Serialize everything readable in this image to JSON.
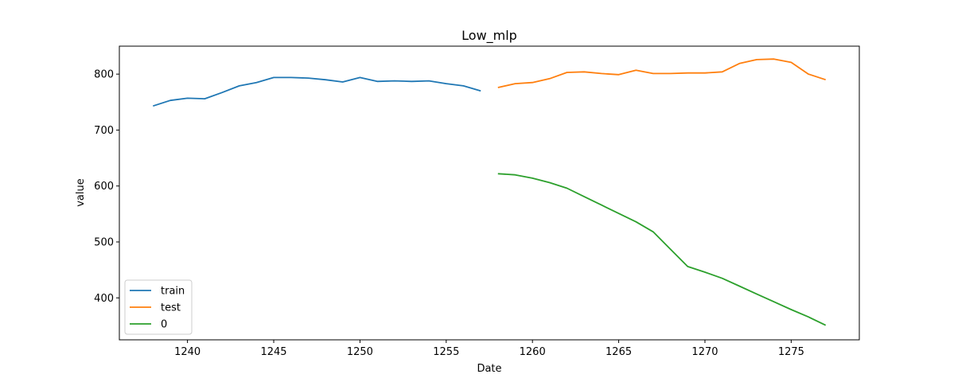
{
  "chart_data": {
    "type": "line",
    "title": "Low_mlp",
    "xlabel": "Date",
    "ylabel": "value",
    "xlim": [
      1236.05,
      1278.95
    ],
    "ylim": [
      325,
      850
    ],
    "xticks": [
      1240,
      1245,
      1250,
      1255,
      1260,
      1265,
      1270,
      1275
    ],
    "yticks": [
      400,
      500,
      600,
      700,
      800
    ],
    "grid": false,
    "legend_position": "lower-left",
    "series": [
      {
        "name": "train",
        "color": "#1f77b4",
        "x": [
          1238,
          1239,
          1240,
          1241,
          1242,
          1243,
          1244,
          1245,
          1246,
          1247,
          1248,
          1249,
          1250,
          1251,
          1252,
          1253,
          1254,
          1255,
          1256,
          1257
        ],
        "y": [
          743,
          753,
          757,
          756,
          767,
          779,
          785,
          794,
          794,
          793,
          790,
          786,
          794,
          787,
          788,
          787,
          788,
          783,
          779,
          770
        ]
      },
      {
        "name": "test",
        "color": "#ff7f0e",
        "x": [
          1258,
          1259,
          1260,
          1261,
          1262,
          1263,
          1264,
          1265,
          1266,
          1267,
          1268,
          1269,
          1270,
          1271,
          1272,
          1273,
          1274,
          1275,
          1276,
          1277
        ],
        "y": [
          776,
          783,
          785,
          792,
          803,
          804,
          801,
          799,
          807,
          801,
          801,
          802,
          802,
          804,
          819,
          826,
          827,
          821,
          800,
          790
        ]
      },
      {
        "name": "0",
        "color": "#2ca02c",
        "x": [
          1258,
          1259,
          1260,
          1261,
          1262,
          1263,
          1264,
          1265,
          1266,
          1267,
          1268,
          1269,
          1270,
          1271,
          1272,
          1273,
          1274,
          1275,
          1276,
          1277
        ],
        "y": [
          622,
          620,
          614,
          606,
          596,
          581,
          566,
          551,
          536,
          518,
          487,
          456,
          446,
          435,
          421,
          407,
          393,
          379,
          366,
          351
        ]
      }
    ]
  }
}
